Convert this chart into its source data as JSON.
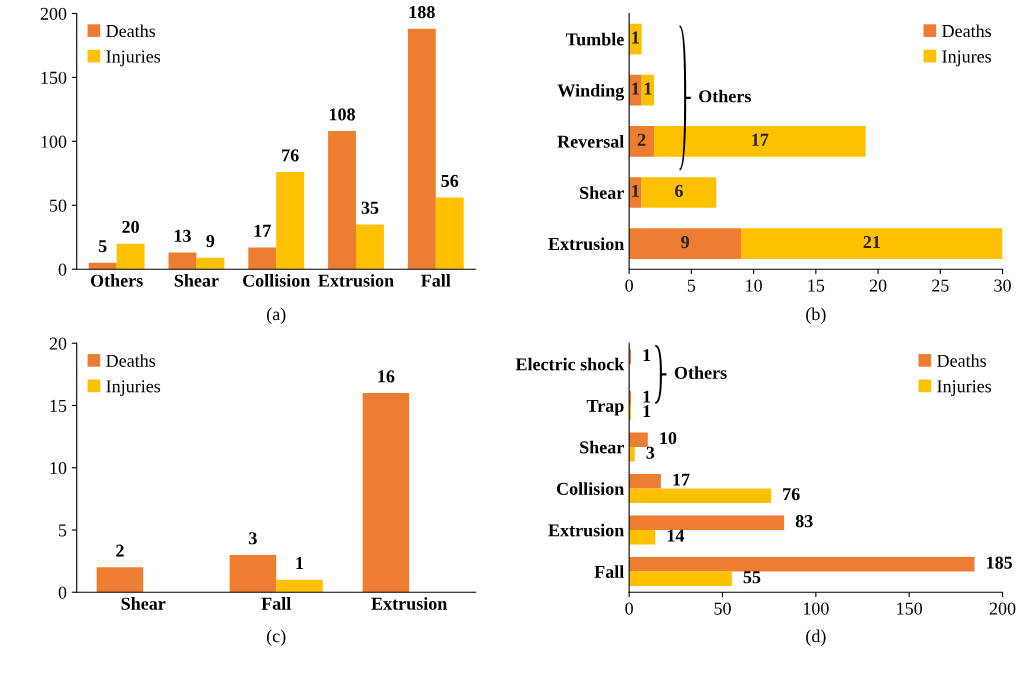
{
  "chart_data": [
    {
      "type": "bar",
      "categories": [
        "Others",
        "Shear",
        "Collision",
        "Extrusion",
        "Fall"
      ],
      "series": [
        {
          "name": "Deaths",
          "color": "#ed7d31",
          "values": [
            5,
            13,
            17,
            108,
            188
          ]
        },
        {
          "name": "Injuries",
          "color": "#ffc000",
          "values": [
            20,
            9,
            76,
            35,
            56
          ]
        }
      ],
      "ylim": [
        0,
        200
      ],
      "yticks": [
        0,
        50,
        100,
        150,
        200
      ],
      "data_labels": true,
      "legend": "top left",
      "grid": false,
      "annotations": [
        "(a)"
      ]
    },
    {
      "type": "bar",
      "orientation": "horizontal",
      "stacked": true,
      "categories": [
        "Tumble",
        "Winding",
        "Reversal",
        "Shear",
        "Extrusion"
      ],
      "series": [
        {
          "name": "Deaths",
          "color": "#ed7d31",
          "values": [
            0,
            1,
            2,
            1,
            9
          ],
          "value_labels": [
            null,
            "1",
            "2",
            "1",
            "9"
          ]
        },
        {
          "name": "Injures",
          "color": "#ffc000",
          "values": [
            1,
            1,
            17,
            6,
            21
          ],
          "value_labels": [
            "1",
            "1",
            "17",
            "6",
            "21"
          ]
        }
      ],
      "xlim": [
        0,
        30
      ],
      "xticks": [
        0,
        5,
        10,
        15,
        20,
        25,
        30
      ],
      "legend": "top right",
      "grid": false,
      "annotations": [
        "(b)",
        "Others"
      ]
    },
    {
      "type": "bar",
      "categories": [
        "Shear",
        "Fall",
        "Extrusion"
      ],
      "series": [
        {
          "name": "Deaths",
          "color": "#ed7d31",
          "values": [
            2,
            3,
            16
          ],
          "value_labels": [
            "2",
            "3",
            "16"
          ]
        },
        {
          "name": "Injuries",
          "color": "#ffc000",
          "values": [
            null,
            1,
            null
          ],
          "value_labels": [
            null,
            "1",
            null
          ]
        }
      ],
      "ylim": [
        0,
        20
      ],
      "yticks": [
        0,
        5,
        10,
        15,
        20
      ],
      "legend": "top left",
      "grid": false,
      "annotations": [
        "(c)"
      ]
    },
    {
      "type": "bar",
      "orientation": "horizontal",
      "categories": [
        "Electric shock",
        "Trap",
        "Shear",
        "Collision",
        "Extrusion",
        "Fall"
      ],
      "series": [
        {
          "name": "Deaths",
          "color": "#ed7d31",
          "values": [
            1,
            1,
            10,
            17,
            83,
            185
          ],
          "value_labels": [
            "1",
            "1",
            "10",
            "17",
            "83",
            "185"
          ]
        },
        {
          "name": "Injuries",
          "color": "#ffc000",
          "values": [
            null,
            1,
            3,
            76,
            14,
            55
          ],
          "value_labels": [
            null,
            "1",
            "3",
            "76",
            "14",
            "55"
          ]
        }
      ],
      "xlim": [
        0,
        200
      ],
      "xticks": [
        0,
        50,
        100,
        150,
        200
      ],
      "legend": "top right",
      "grid": false,
      "annotations": [
        "(d)",
        "Others"
      ]
    }
  ]
}
